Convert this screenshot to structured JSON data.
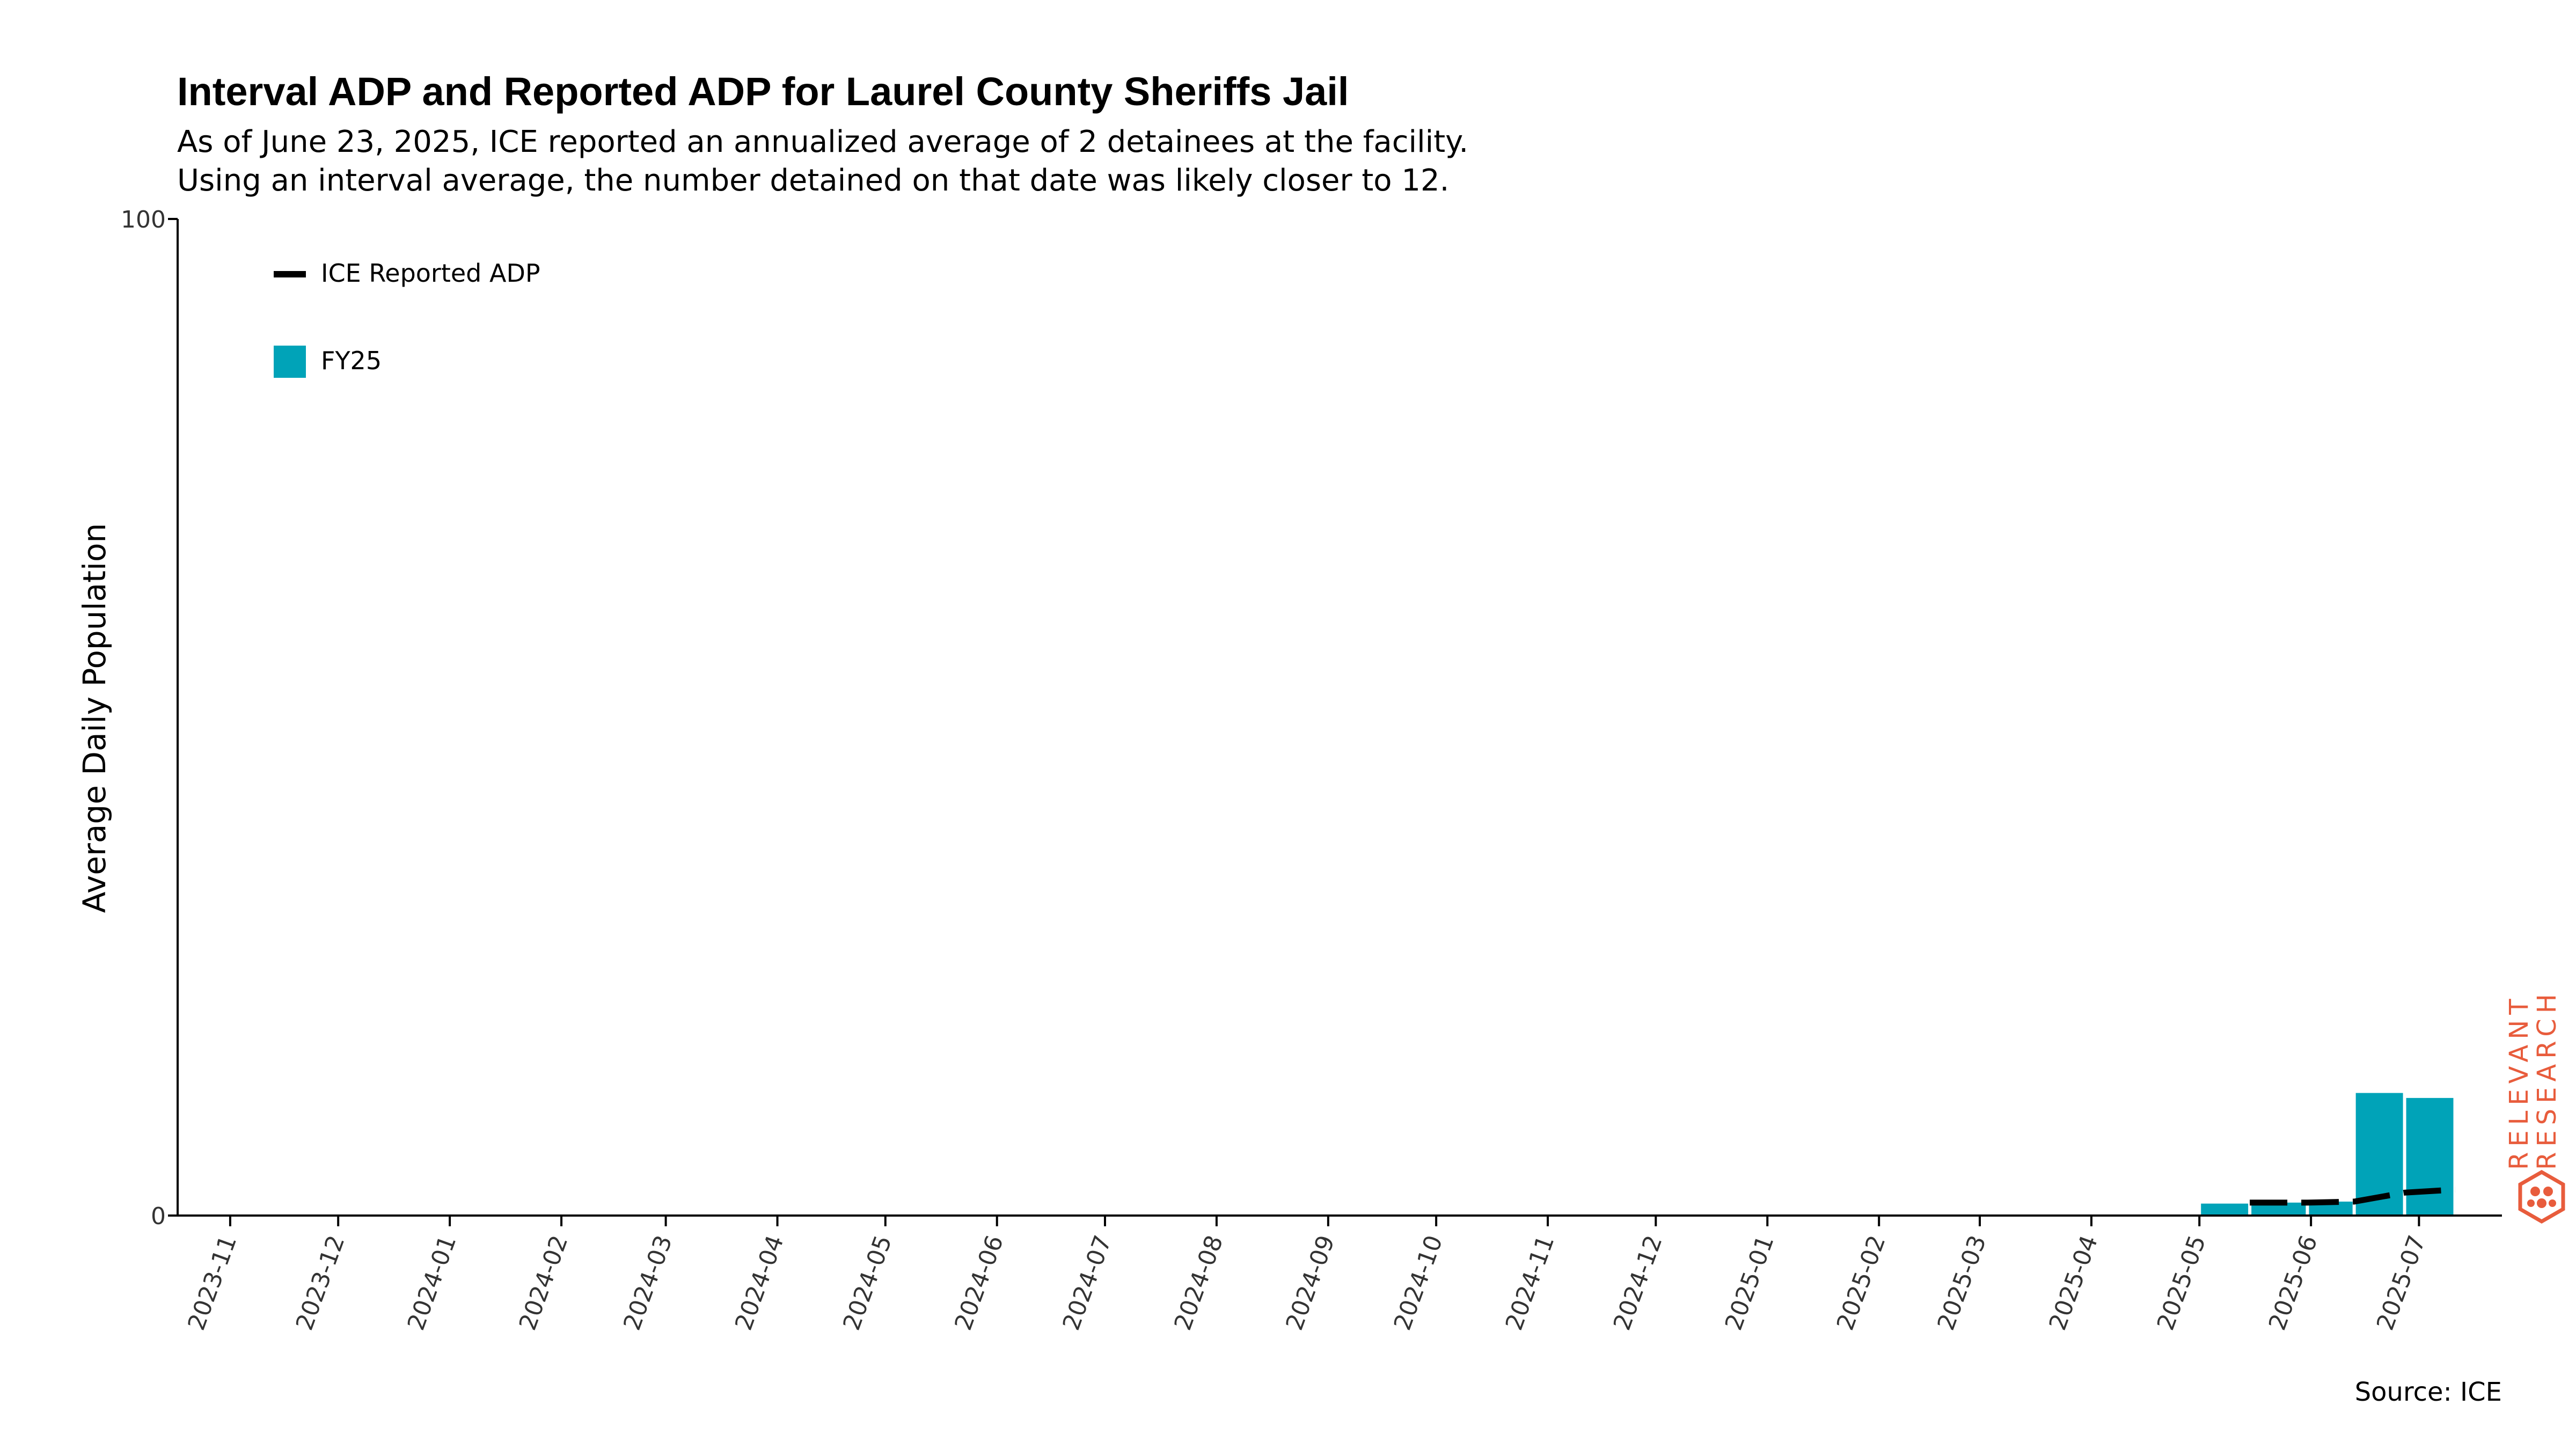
{
  "title": "Interval ADP and Reported ADP for Laurel County Sheriffs Jail",
  "subtitle": [
    "As of June 23, 2025, ICE reported an annualized average of 2 detainees at the facility.",
    "Using an interval average, the number detained on that date was likely closer to 12."
  ],
  "source": "Source: ICE",
  "logo": {
    "line1": "RELEVANT",
    "line2": "RESEARCH",
    "color": "#e85c3c"
  },
  "colors": {
    "bar": "#00a3b8",
    "line": "#000000",
    "axis": "#000000",
    "tick_text": "#333333"
  },
  "chart_data": {
    "type": "bar",
    "ylabel": "Average Daily Population",
    "ylim": [
      0,
      100
    ],
    "y_ticks": [
      "0",
      "100"
    ],
    "x_ticks": [
      "2023-11",
      "2023-12",
      "2024-01",
      "2024-02",
      "2024-03",
      "2024-04",
      "2024-05",
      "2024-06",
      "2024-07",
      "2024-08",
      "2024-09",
      "2024-10",
      "2024-11",
      "2024-12",
      "2025-01",
      "2025-02",
      "2025-03",
      "2025-04",
      "2025-05",
      "2025-06",
      "2025-07"
    ],
    "x_range": [
      "2023-10-18",
      "2025-07-23"
    ],
    "legend": {
      "placement": "top-left",
      "entries": [
        {
          "label": "ICE Reported ADP",
          "kind": "dashed-line"
        },
        {
          "label": "FY25",
          "kind": "bar"
        }
      ]
    },
    "bars": {
      "name": "FY25",
      "intervals": [
        {
          "start": "2025-05-01",
          "end": "2025-05-15",
          "value": 1.2
        },
        {
          "start": "2025-05-15",
          "end": "2025-05-31",
          "value": 1.3
        },
        {
          "start": "2025-05-31",
          "end": "2025-06-13",
          "value": 1.4
        },
        {
          "start": "2025-06-13",
          "end": "2025-06-27",
          "value": 12.3
        },
        {
          "start": "2025-06-27",
          "end": "2025-07-11",
          "value": 11.8
        }
      ]
    },
    "line": {
      "name": "ICE Reported ADP",
      "points": [
        {
          "x": "2025-05-15",
          "y": 1.3
        },
        {
          "x": "2025-05-31",
          "y": 1.3
        },
        {
          "x": "2025-06-13",
          "y": 1.4
        },
        {
          "x": "2025-06-27",
          "y": 2.3
        },
        {
          "x": "2025-07-11",
          "y": 2.6
        }
      ]
    }
  }
}
